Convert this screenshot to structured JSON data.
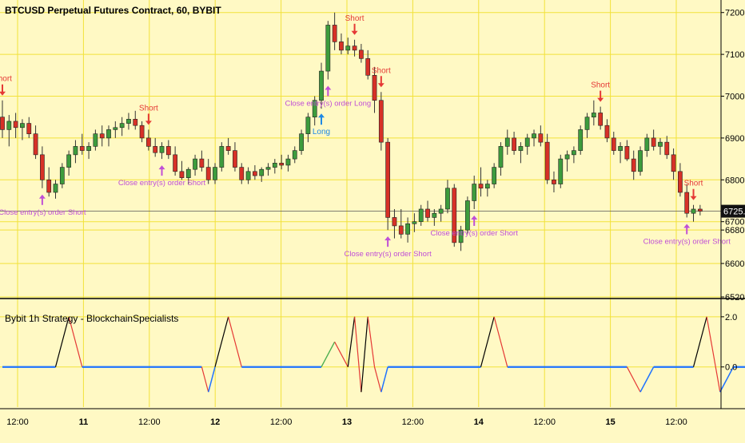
{
  "main_title": "BTCUSD Perpetual Futures Contract, 60, BYBIT",
  "indicator_title": "Bybit 1h Strategy - BlockchainSpecialists",
  "colors": {
    "background": "#fff9c4",
    "grid": "#f2e23a",
    "up": "#3d9c3d",
    "down": "#d73127",
    "axis": "#000000",
    "long_arrow": "#1e88e5",
    "short_arrow": "#e53935",
    "close_arrow": "#c04fd6",
    "price_tag_bg": "#111111",
    "price_tag_text": "#ffffff",
    "osc_blue": "#1f73ff",
    "osc_black": "#000000",
    "osc_red": "#e53935",
    "osc_green": "#4caf50"
  },
  "chart_data": [
    {
      "type": "candlestick",
      "title": "BTCUSD Perpetual Futures Contract, 60, BYBIT",
      "y_ticks": [
        "7200.0",
        "7100.0",
        "7000.0",
        "6900.0",
        "6800.0",
        "6700.0",
        "6680.0",
        "6600.0",
        "6520.0"
      ],
      "last_price_label": "6725.0",
      "last_price": 6725,
      "ylim": [
        6520,
        7230
      ],
      "candles": [
        [
          6950,
          6990,
          6900,
          6920
        ],
        [
          6920,
          6955,
          6880,
          6940
        ],
        [
          6940,
          6960,
          6900,
          6925
        ],
        [
          6925,
          6945,
          6895,
          6935
        ],
        [
          6935,
          6950,
          6900,
          6910
        ],
        [
          6910,
          6930,
          6850,
          6860
        ],
        [
          6860,
          6880,
          6780,
          6800
        ],
        [
          6800,
          6830,
          6760,
          6770
        ],
        [
          6770,
          6800,
          6755,
          6790
        ],
        [
          6790,
          6840,
          6780,
          6830
        ],
        [
          6830,
          6870,
          6810,
          6860
        ],
        [
          6860,
          6895,
          6840,
          6880
        ],
        [
          6880,
          6910,
          6860,
          6870
        ],
        [
          6870,
          6890,
          6850,
          6880
        ],
        [
          6880,
          6920,
          6870,
          6910
        ],
        [
          6910,
          6930,
          6880,
          6900
        ],
        [
          6900,
          6930,
          6880,
          6920
        ],
        [
          6920,
          6940,
          6900,
          6925
        ],
        [
          6925,
          6950,
          6905,
          6935
        ],
        [
          6935,
          6960,
          6920,
          6945
        ],
        [
          6945,
          6965,
          6920,
          6930
        ],
        [
          6930,
          6940,
          6890,
          6900
        ],
        [
          6900,
          6920,
          6870,
          6880
        ],
        [
          6880,
          6900,
          6855,
          6865
        ],
        [
          6865,
          6890,
          6850,
          6880
        ],
        [
          6880,
          6895,
          6850,
          6860
        ],
        [
          6860,
          6880,
          6810,
          6820
        ],
        [
          6820,
          6845,
          6800,
          6805
        ],
        [
          6805,
          6830,
          6790,
          6825
        ],
        [
          6825,
          6860,
          6810,
          6850
        ],
        [
          6850,
          6870,
          6820,
          6830
        ],
        [
          6830,
          6850,
          6790,
          6800
        ],
        [
          6800,
          6840,
          6790,
          6830
        ],
        [
          6830,
          6890,
          6820,
          6880
        ],
        [
          6880,
          6900,
          6860,
          6870
        ],
        [
          6870,
          6890,
          6820,
          6830
        ],
        [
          6830,
          6840,
          6790,
          6800
        ],
        [
          6800,
          6830,
          6790,
          6820
        ],
        [
          6820,
          6835,
          6800,
          6810
        ],
        [
          6810,
          6830,
          6795,
          6825
        ],
        [
          6825,
          6840,
          6810,
          6830
        ],
        [
          6830,
          6850,
          6815,
          6840
        ],
        [
          6840,
          6860,
          6825,
          6835
        ],
        [
          6835,
          6860,
          6820,
          6850
        ],
        [
          6850,
          6880,
          6840,
          6870
        ],
        [
          6870,
          6920,
          6860,
          6910
        ],
        [
          6910,
          6960,
          6890,
          6950
        ],
        [
          6950,
          7000,
          6930,
          6990
        ],
        [
          6990,
          7080,
          6970,
          7060
        ],
        [
          7060,
          7180,
          7040,
          7170
        ],
        [
          7170,
          7200,
          7110,
          7130
        ],
        [
          7130,
          7150,
          7100,
          7110
        ],
        [
          7110,
          7140,
          7100,
          7120
        ],
        [
          7120,
          7135,
          7095,
          7110
        ],
        [
          7110,
          7125,
          7080,
          7090
        ],
        [
          7090,
          7110,
          7040,
          7050
        ],
        [
          7050,
          7070,
          6960,
          6990
        ],
        [
          6990,
          7010,
          6870,
          6890
        ],
        [
          6890,
          6900,
          6680,
          6710
        ],
        [
          6710,
          6730,
          6660,
          6690
        ],
        [
          6690,
          6730,
          6660,
          6670
        ],
        [
          6670,
          6710,
          6650,
          6695
        ],
        [
          6695,
          6720,
          6675,
          6700
        ],
        [
          6700,
          6740,
          6690,
          6730
        ],
        [
          6730,
          6750,
          6700,
          6710
        ],
        [
          6710,
          6730,
          6690,
          6720
        ],
        [
          6720,
          6740,
          6700,
          6730
        ],
        [
          6730,
          6800,
          6720,
          6780
        ],
        [
          6780,
          6790,
          6640,
          6650
        ],
        [
          6650,
          6690,
          6630,
          6680
        ],
        [
          6680,
          6760,
          6670,
          6750
        ],
        [
          6750,
          6810,
          6730,
          6790
        ],
        [
          6790,
          6830,
          6760,
          6780
        ],
        [
          6780,
          6800,
          6760,
          6790
        ],
        [
          6790,
          6840,
          6780,
          6830
        ],
        [
          6830,
          6890,
          6810,
          6880
        ],
        [
          6880,
          6920,
          6860,
          6900
        ],
        [
          6900,
          6915,
          6860,
          6870
        ],
        [
          6870,
          6890,
          6840,
          6880
        ],
        [
          6880,
          6910,
          6860,
          6900
        ],
        [
          6900,
          6920,
          6880,
          6910
        ],
        [
          6910,
          6930,
          6880,
          6890
        ],
        [
          6890,
          6910,
          6790,
          6800
        ],
        [
          6800,
          6820,
          6770,
          6790
        ],
        [
          6790,
          6860,
          6780,
          6850
        ],
        [
          6850,
          6870,
          6820,
          6860
        ],
        [
          6860,
          6880,
          6840,
          6870
        ],
        [
          6870,
          6930,
          6860,
          6920
        ],
        [
          6920,
          6960,
          6900,
          6950
        ],
        [
          6950,
          6990,
          6930,
          6960
        ],
        [
          6960,
          6975,
          6920,
          6930
        ],
        [
          6930,
          6945,
          6890,
          6900
        ],
        [
          6900,
          6915,
          6860,
          6870
        ],
        [
          6870,
          6890,
          6840,
          6880
        ],
        [
          6880,
          6895,
          6845,
          6850
        ],
        [
          6850,
          6870,
          6800,
          6820
        ],
        [
          6820,
          6880,
          6810,
          6870
        ],
        [
          6870,
          6910,
          6855,
          6900
        ],
        [
          6900,
          6920,
          6870,
          6880
        ],
        [
          6880,
          6900,
          6860,
          6890
        ],
        [
          6890,
          6905,
          6850,
          6860
        ],
        [
          6860,
          6875,
          6800,
          6820
        ],
        [
          6820,
          6840,
          6760,
          6770
        ],
        [
          6770,
          6790,
          6710,
          6720
        ],
        [
          6720,
          6740,
          6700,
          6730
        ],
        [
          6730,
          6740,
          6715,
          6725
        ]
      ],
      "annotations": [
        {
          "type": "short",
          "label": "Short",
          "bar": 0
        },
        {
          "type": "close",
          "label": "Close entry(s) order Short",
          "bar": 6
        },
        {
          "type": "short",
          "label": "Short",
          "bar": 22
        },
        {
          "type": "close",
          "label": "Close entry(s) order Short",
          "bar": 24
        },
        {
          "type": "long",
          "label": "Long",
          "bar": 48
        },
        {
          "type": "close",
          "label": "Close entry(s) order Long",
          "bar": 49
        },
        {
          "type": "short",
          "label": "Short",
          "bar": 53
        },
        {
          "type": "short",
          "label": "Short",
          "bar": 57
        },
        {
          "type": "close",
          "label": "Close entry(s) order Short",
          "bar": 58
        },
        {
          "type": "close",
          "label": "Close entry(s) order Short",
          "bar": 71
        },
        {
          "type": "short",
          "label": "Short",
          "bar": 90
        },
        {
          "type": "close",
          "label": "Close entry(s) order Short",
          "bar": 103
        },
        {
          "type": "short",
          "label": "Short",
          "bar": 104
        }
      ]
    },
    {
      "type": "line",
      "title": "Bybit 1h Strategy - BlockchainSpecialists",
      "y_ticks": [
        "2.0",
        "0.0"
      ],
      "ylim": [
        -1.6,
        2.6
      ],
      "points": [
        [
          0,
          0
        ],
        [
          8,
          0
        ],
        [
          10,
          2
        ],
        [
          12,
          0
        ],
        [
          30,
          0
        ],
        [
          31,
          -1
        ],
        [
          32,
          0
        ],
        [
          34,
          2
        ],
        [
          36,
          0
        ],
        [
          48,
          0
        ],
        [
          50,
          1
        ],
        [
          52,
          0
        ],
        [
          53,
          2
        ],
        [
          54,
          -1
        ],
        [
          55,
          2
        ],
        [
          56,
          0
        ],
        [
          57,
          -1
        ],
        [
          58,
          0
        ],
        [
          72,
          0
        ],
        [
          74,
          2
        ],
        [
          76,
          0
        ],
        [
          94,
          0
        ],
        [
          96,
          -1
        ],
        [
          98,
          0
        ],
        [
          104,
          0
        ],
        [
          106,
          2
        ],
        [
          108,
          -1
        ],
        [
          110,
          0
        ],
        [
          112,
          0
        ]
      ]
    }
  ],
  "x_axis": {
    "labels": [
      "12:00",
      "11",
      "12:00",
      "12",
      "12:00",
      "13",
      "12:00",
      "14",
      "12:00",
      "15",
      "12:00"
    ]
  }
}
